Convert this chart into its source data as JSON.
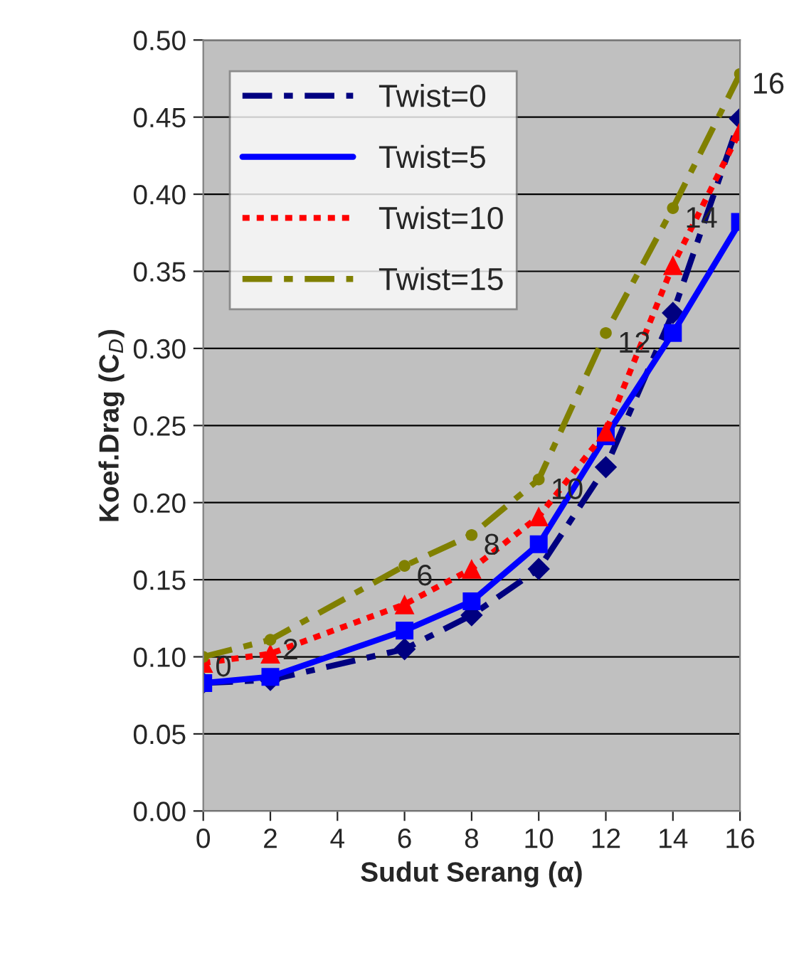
{
  "chart_data": {
    "type": "line",
    "xlabel": "Sudut Serang (α)",
    "ylabel": "Koef.Drag (C$_{D}$)",
    "x": [
      0,
      2,
      6,
      8,
      10,
      12,
      14,
      16
    ],
    "series": [
      {
        "name": "Twist=0",
        "color": "#000080",
        "marker": "diamond",
        "line_style": "dashed",
        "values": [
          0.083,
          0.085,
          0.105,
          0.127,
          0.157,
          0.223,
          0.323,
          0.449
        ]
      },
      {
        "name": "Twist=5",
        "color": "#0000ff",
        "marker": "square",
        "line_style": "solid",
        "values": [
          0.083,
          0.087,
          0.117,
          0.136,
          0.173,
          0.243,
          0.31,
          0.382
        ]
      },
      {
        "name": "Twist=10",
        "color": "#ff0000",
        "marker": "triangle",
        "line_style": "dotted",
        "values": [
          0.096,
          0.102,
          0.134,
          0.157,
          0.191,
          0.246,
          0.354,
          0.441
        ]
      },
      {
        "name": "Twist=15",
        "color": "#808000",
        "marker": "circle",
        "line_style": "dashed",
        "values": [
          0.1,
          0.111,
          0.159,
          0.179,
          0.215,
          0.31,
          0.391,
          0.478
        ]
      }
    ],
    "xlim": [
      0,
      16
    ],
    "xticks": [
      0,
      2,
      4,
      6,
      8,
      10,
      12,
      14,
      16
    ],
    "ylim": [
      0,
      0.5
    ],
    "yticks": [
      {
        "value": 0,
        "label": "0.00"
      },
      {
        "value": 0.05,
        "label": "0.05"
      },
      {
        "value": 0.1,
        "label": "0.10"
      },
      {
        "value": 0.15,
        "label": "0.15"
      },
      {
        "value": 0.2,
        "label": "0.20"
      },
      {
        "value": 0.25,
        "label": "0.25"
      },
      {
        "value": 0.3,
        "label": "0.30"
      },
      {
        "value": 0.35,
        "label": "0.35"
      },
      {
        "value": 0.4,
        "label": "0.40"
      },
      {
        "value": 0.45,
        "label": "0.45"
      },
      {
        "value": 0.5,
        "label": "0.50"
      }
    ],
    "grid": "y",
    "legend": "top left",
    "annotations": [
      {
        "text": "0",
        "x": 0,
        "y": 0.1
      },
      {
        "text": "2",
        "x": 2,
        "y": 0.111
      },
      {
        "text": "6",
        "x": 6,
        "y": 0.159
      },
      {
        "text": "8",
        "x": 8,
        "y": 0.179
      },
      {
        "text": "10",
        "x": 10,
        "y": 0.215
      },
      {
        "text": "12",
        "x": 12,
        "y": 0.31
      },
      {
        "text": "14",
        "x": 14,
        "y": 0.391
      },
      {
        "text": "16",
        "x": 16,
        "y": 0.478
      }
    ]
  }
}
